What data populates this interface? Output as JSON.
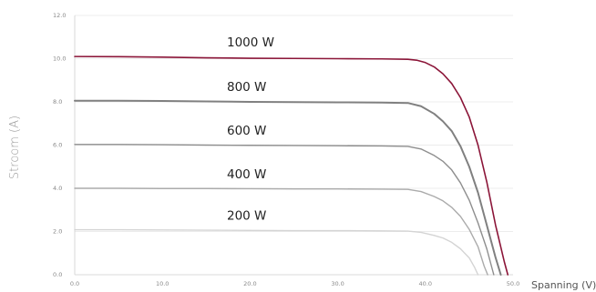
{
  "chart_data": {
    "type": "line",
    "title": "",
    "xlabel": "Spanning (V)",
    "ylabel": "Stroom (A)",
    "xlim": [
      0,
      50
    ],
    "ylim": [
      0,
      12
    ],
    "grid": true,
    "x_ticks": [
      "0.0",
      "10.0",
      "20.0",
      "30.0",
      "40.0",
      "50.0"
    ],
    "y_ticks": [
      "0.0",
      "2.0",
      "4.0",
      "6.0",
      "8.0",
      "10.0",
      "12.0"
    ],
    "series": [
      {
        "name": "1000 W",
        "color": "#8b1538",
        "points": [
          [
            0,
            10.1
          ],
          [
            5,
            10.09
          ],
          [
            10,
            10.07
          ],
          [
            15,
            10.04
          ],
          [
            20,
            10.02
          ],
          [
            25,
            10.01
          ],
          [
            30,
            10.0
          ],
          [
            35,
            9.99
          ],
          [
            38,
            9.97
          ],
          [
            39,
            9.93
          ],
          [
            40,
            9.82
          ],
          [
            41,
            9.62
          ],
          [
            42,
            9.3
          ],
          [
            43,
            8.85
          ],
          [
            44,
            8.2
          ],
          [
            45,
            7.3
          ],
          [
            46,
            6.0
          ],
          [
            47,
            4.3
          ],
          [
            48,
            2.3
          ],
          [
            49,
            0.6
          ],
          [
            49.4,
            0
          ]
        ]
      },
      {
        "name": "800 W",
        "color": "#808080",
        "points": [
          [
            0,
            8.05
          ],
          [
            5,
            8.05
          ],
          [
            10,
            8.04
          ],
          [
            15,
            8.02
          ],
          [
            20,
            8.0
          ],
          [
            25,
            7.99
          ],
          [
            30,
            7.98
          ],
          [
            35,
            7.97
          ],
          [
            38,
            7.95
          ],
          [
            39.5,
            7.8
          ],
          [
            41,
            7.45
          ],
          [
            42,
            7.1
          ],
          [
            43,
            6.65
          ],
          [
            44,
            5.95
          ],
          [
            45,
            5.0
          ],
          [
            46,
            3.8
          ],
          [
            47,
            2.3
          ],
          [
            48,
            0.8
          ],
          [
            48.6,
            0
          ]
        ]
      },
      {
        "name": "600 W",
        "color": "#8e8e8e",
        "points": [
          [
            0,
            6.03
          ],
          [
            5,
            6.03
          ],
          [
            10,
            6.02
          ],
          [
            15,
            6.0
          ],
          [
            20,
            5.99
          ],
          [
            25,
            5.98
          ],
          [
            30,
            5.97
          ],
          [
            35,
            5.96
          ],
          [
            38,
            5.94
          ],
          [
            39.5,
            5.82
          ],
          [
            41,
            5.52
          ],
          [
            42,
            5.25
          ],
          [
            43,
            4.85
          ],
          [
            44,
            4.25
          ],
          [
            45,
            3.45
          ],
          [
            46,
            2.4
          ],
          [
            47,
            1.2
          ],
          [
            47.8,
            0
          ]
        ]
      },
      {
        "name": "400 W",
        "color": "#ababab",
        "points": [
          [
            0,
            4.0
          ],
          [
            5,
            4.0
          ],
          [
            10,
            3.99
          ],
          [
            15,
            3.99
          ],
          [
            20,
            3.98
          ],
          [
            25,
            3.97
          ],
          [
            30,
            3.97
          ],
          [
            35,
            3.96
          ],
          [
            38,
            3.95
          ],
          [
            39.5,
            3.85
          ],
          [
            41,
            3.62
          ],
          [
            42,
            3.42
          ],
          [
            43,
            3.12
          ],
          [
            44,
            2.7
          ],
          [
            45,
            2.1
          ],
          [
            46,
            1.3
          ],
          [
            46.7,
            0.4
          ],
          [
            47.1,
            0
          ]
        ]
      },
      {
        "name": "200 W",
        "color": "#d4d4d4",
        "points": [
          [
            0,
            2.08
          ],
          [
            5,
            2.08
          ],
          [
            10,
            2.07
          ],
          [
            15,
            2.06
          ],
          [
            20,
            2.05
          ],
          [
            25,
            2.04
          ],
          [
            30,
            2.04
          ],
          [
            35,
            2.03
          ],
          [
            38,
            2.02
          ],
          [
            39.5,
            1.96
          ],
          [
            41,
            1.82
          ],
          [
            42,
            1.7
          ],
          [
            43,
            1.5
          ],
          [
            44,
            1.2
          ],
          [
            45,
            0.78
          ],
          [
            45.6,
            0.35
          ],
          [
            46,
            0
          ]
        ]
      }
    ],
    "series_labels": [
      "1000 W",
      "800 W",
      "600 W",
      "400 W",
      "200 W"
    ]
  }
}
